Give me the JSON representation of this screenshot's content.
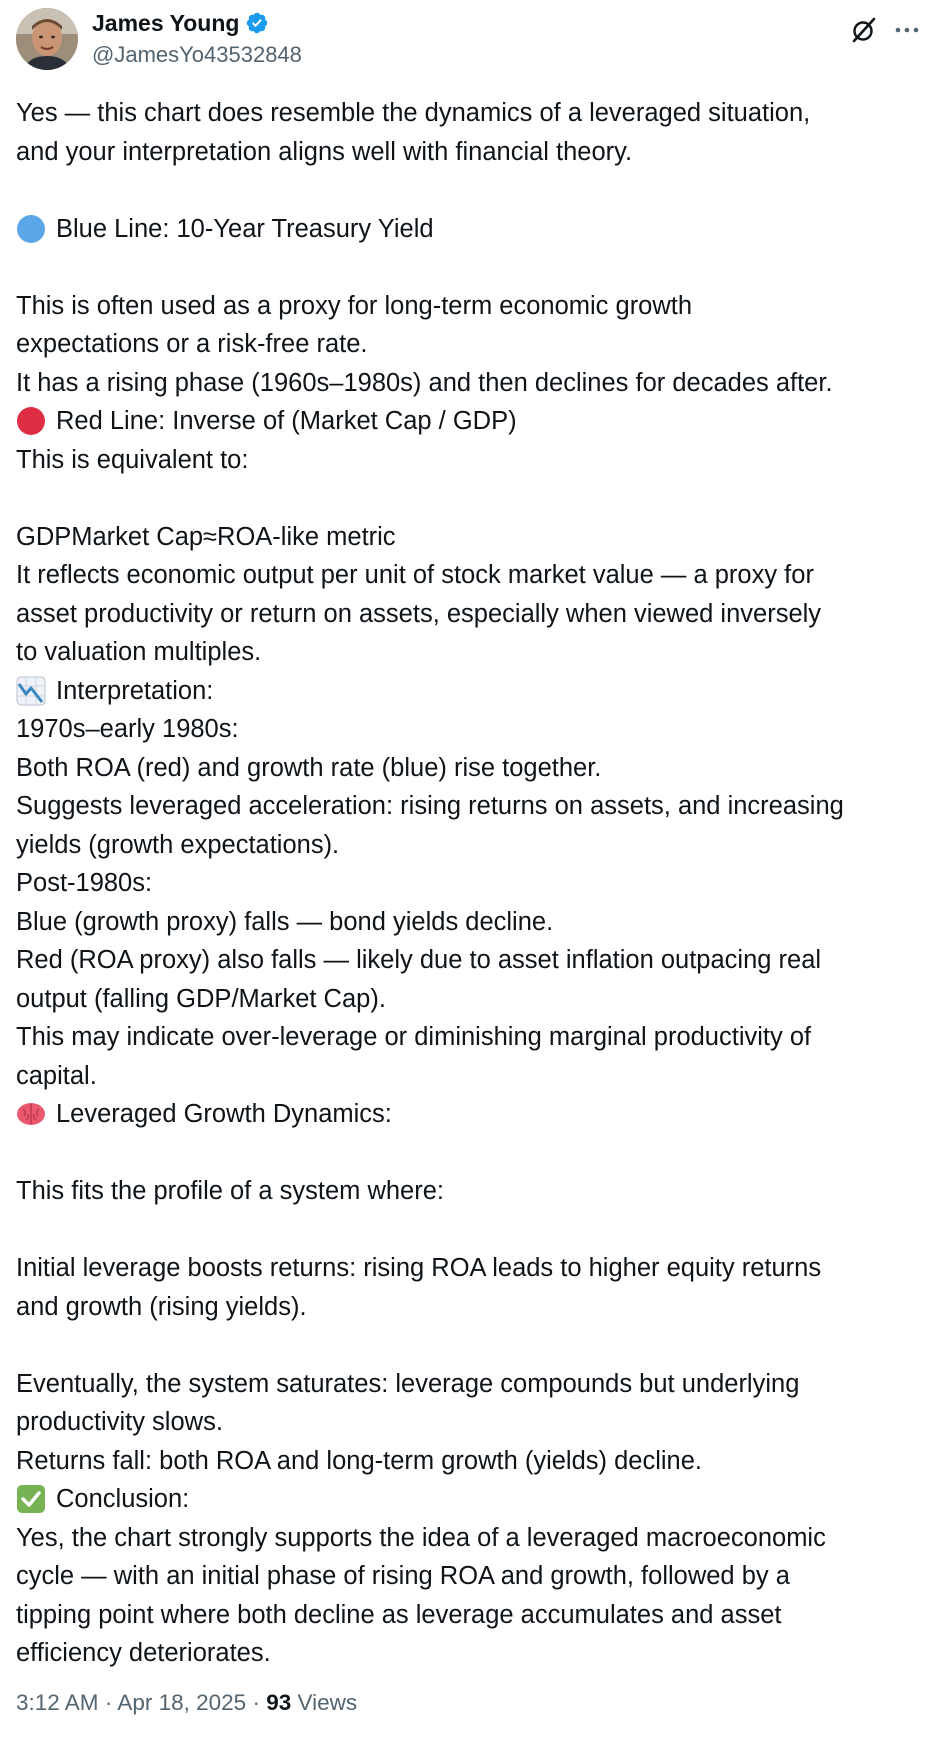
{
  "author": {
    "display_name": "James Young",
    "handle": "@JamesYo43532848",
    "verified": true,
    "verified_color": "#1d9bf0"
  },
  "icons": {
    "header_actions": [
      "grok-icon",
      "more-icon"
    ],
    "verified": "verified-badge-icon"
  },
  "body": {
    "lines": [
      {
        "text": "Yes — this chart does resemble the dynamics of a leveraged situation,"
      },
      {
        "text": "and your interpretation aligns well with financial theory."
      },
      {
        "text": ""
      },
      {
        "emoji": "blue-circle-icon",
        "text": "Blue Line: 10-Year Treasury Yield"
      },
      {
        "text": ""
      },
      {
        "text": "This is often used as a proxy for long-term economic growth"
      },
      {
        "text": "expectations or a risk-free rate."
      },
      {
        "text": "It has a rising phase (1960s–1980s) and then declines for decades after."
      },
      {
        "emoji": "red-circle-icon",
        "text": "Red Line: Inverse of (Market Cap / GDP)"
      },
      {
        "text": "This is equivalent to:"
      },
      {
        "text": ""
      },
      {
        "text": "GDPMarket Cap≈ROA-like metric"
      },
      {
        "text": "It reflects economic output per unit of stock market value — a proxy for"
      },
      {
        "text": "asset productivity or return on assets, especially when viewed inversely"
      },
      {
        "text": "to valuation multiples."
      },
      {
        "emoji": "chart-decreasing-icon",
        "text": "Interpretation:"
      },
      {
        "text": "1970s–early 1980s:"
      },
      {
        "text": "Both ROA (red) and growth rate (blue) rise together."
      },
      {
        "text": "Suggests leveraged acceleration: rising returns on assets, and increasing"
      },
      {
        "text": "yields (growth expectations)."
      },
      {
        "text": "Post-1980s:"
      },
      {
        "text": "Blue (growth proxy) falls — bond yields decline."
      },
      {
        "text": "Red (ROA proxy) also falls — likely due to asset inflation outpacing real"
      },
      {
        "text": "output (falling GDP/Market Cap)."
      },
      {
        "text": "This may indicate over-leverage or diminishing marginal productivity of"
      },
      {
        "text": "capital."
      },
      {
        "emoji": "brain-icon",
        "text": "Leveraged Growth Dynamics:"
      },
      {
        "text": ""
      },
      {
        "text": "This fits the profile of a system where:"
      },
      {
        "text": ""
      },
      {
        "text": "Initial leverage boosts returns: rising ROA leads to higher equity returns"
      },
      {
        "text": "and growth (rising yields)."
      },
      {
        "text": ""
      },
      {
        "text": "Eventually, the system saturates: leverage compounds but underlying"
      },
      {
        "text": "productivity slows."
      },
      {
        "text": "Returns fall: both ROA and long-term growth (yields) decline."
      },
      {
        "emoji": "check-mark-icon",
        "text": "Conclusion:"
      },
      {
        "text": "Yes, the chart strongly supports the idea of a leveraged macroeconomic"
      },
      {
        "text": "cycle — with an initial phase of rising ROA and growth, followed by a"
      },
      {
        "text": "tipping point where both decline as leverage accumulates and asset"
      },
      {
        "text": "efficiency deteriorates."
      }
    ]
  },
  "footer": {
    "time": "3:12 AM",
    "separator": "·",
    "date": "Apr 18, 2025",
    "views_count": "93",
    "views_label": "Views"
  },
  "colors": {
    "text": "#0f1419",
    "secondary": "#536471",
    "verified": "#1d9bf0",
    "blue_circle": "#5aa6e8",
    "red_circle": "#dd2e44",
    "check_green": "#77b255"
  }
}
